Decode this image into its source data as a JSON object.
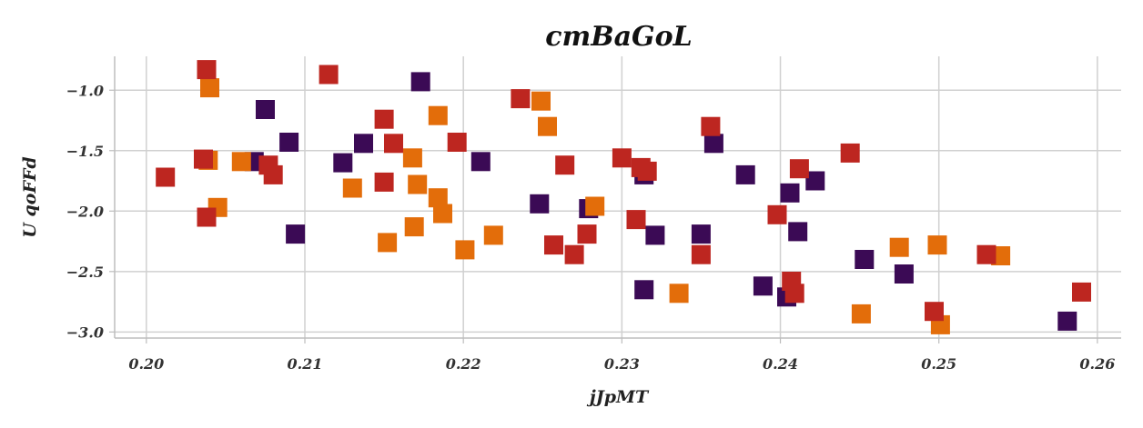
{
  "chart_data": {
    "type": "scatter",
    "title": "cmBaGoL",
    "xlabel": "jJpMT",
    "ylabel": "U qoFFd",
    "xlim": [
      0.198,
      0.2615
    ],
    "ylim": [
      -3.05,
      -0.72
    ],
    "xticks": [
      0.2,
      0.21,
      0.22,
      0.23,
      0.24,
      0.25,
      0.26
    ],
    "xtick_labels": [
      "0.20",
      "0.21",
      "0.22",
      "0.23",
      "0.24",
      "0.25",
      "0.26"
    ],
    "yticks": [
      -1.0,
      -1.5,
      -2.0,
      -2.5,
      -3.0
    ],
    "ytick_labels": [
      "−1.0",
      "−1.5",
      "−2.0",
      "−2.5",
      "−3.0"
    ],
    "grid": true,
    "legend": "none",
    "marker": "square",
    "series": [
      {
        "color": "#3b0a55",
        "points": [
          [
            0.2173,
            -0.93
          ],
          [
            0.2075,
            -1.16
          ],
          [
            0.209,
            -1.43
          ],
          [
            0.2137,
            -1.44
          ],
          [
            0.2068,
            -1.59
          ],
          [
            0.2124,
            -1.6
          ],
          [
            0.2211,
            -1.59
          ],
          [
            0.2094,
            -2.19
          ],
          [
            0.2248,
            -1.94
          ],
          [
            0.2279,
            -1.98
          ],
          [
            0.2314,
            -1.7
          ],
          [
            0.2321,
            -2.2
          ],
          [
            0.2314,
            -2.65
          ],
          [
            0.2358,
            -1.44
          ],
          [
            0.235,
            -2.19
          ],
          [
            0.2378,
            -1.7
          ],
          [
            0.2389,
            -2.62
          ],
          [
            0.2406,
            -1.85
          ],
          [
            0.2422,
            -1.75
          ],
          [
            0.2411,
            -2.17
          ],
          [
            0.2404,
            -2.71
          ],
          [
            0.2453,
            -2.4
          ],
          [
            0.2478,
            -2.52
          ],
          [
            0.2581,
            -2.91
          ]
        ]
      },
      {
        "color": "#e36d0a",
        "points": [
          [
            0.204,
            -0.98
          ],
          [
            0.2039,
            -1.58
          ],
          [
            0.206,
            -1.59
          ],
          [
            0.2045,
            -1.97
          ],
          [
            0.213,
            -1.81
          ],
          [
            0.2152,
            -2.26
          ],
          [
            0.2168,
            -1.56
          ],
          [
            0.2171,
            -1.78
          ],
          [
            0.2169,
            -2.13
          ],
          [
            0.2184,
            -1.21
          ],
          [
            0.2184,
            -1.89
          ],
          [
            0.2187,
            -2.02
          ],
          [
            0.2201,
            -2.32
          ],
          [
            0.2219,
            -2.2
          ],
          [
            0.2249,
            -1.09
          ],
          [
            0.2253,
            -1.3
          ],
          [
            0.2283,
            -1.96
          ],
          [
            0.2336,
            -2.68
          ],
          [
            0.2451,
            -2.85
          ],
          [
            0.2475,
            -2.3
          ],
          [
            0.2499,
            -2.28
          ],
          [
            0.2501,
            -2.94
          ],
          [
            0.2539,
            -2.37
          ]
        ]
      },
      {
        "color": "#bd2620",
        "points": [
          [
            0.2038,
            -0.83
          ],
          [
            0.2036,
            -1.57
          ],
          [
            0.2012,
            -1.72
          ],
          [
            0.2038,
            -2.05
          ],
          [
            0.2077,
            -1.62
          ],
          [
            0.208,
            -1.7
          ],
          [
            0.2115,
            -0.87
          ],
          [
            0.215,
            -1.24
          ],
          [
            0.215,
            -1.76
          ],
          [
            0.2156,
            -1.44
          ],
          [
            0.2196,
            -1.43
          ],
          [
            0.2236,
            -1.07
          ],
          [
            0.2264,
            -1.62
          ],
          [
            0.2257,
            -2.28
          ],
          [
            0.227,
            -2.36
          ],
          [
            0.2278,
            -2.19
          ],
          [
            0.23,
            -1.56
          ],
          [
            0.2312,
            -1.64
          ],
          [
            0.2316,
            -1.67
          ],
          [
            0.2309,
            -2.07
          ],
          [
            0.2356,
            -1.3
          ],
          [
            0.235,
            -2.36
          ],
          [
            0.2398,
            -2.03
          ],
          [
            0.2412,
            -1.65
          ],
          [
            0.2407,
            -2.58
          ],
          [
            0.2409,
            -2.68
          ],
          [
            0.2444,
            -1.52
          ],
          [
            0.2497,
            -2.83
          ],
          [
            0.253,
            -2.36
          ],
          [
            0.259,
            -2.67
          ]
        ]
      }
    ]
  }
}
